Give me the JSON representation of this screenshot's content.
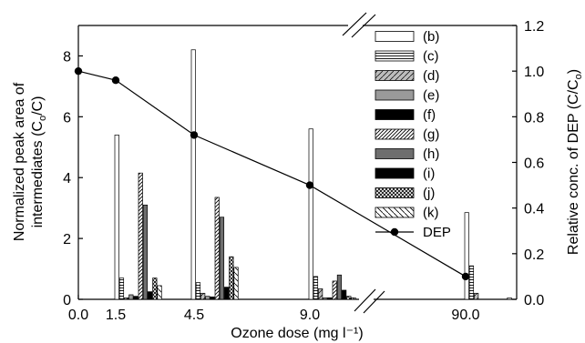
{
  "chart_data": {
    "type": "bar",
    "xlabel": "Ozone dose (mg l⁻¹)",
    "ylabel_left_line1": "Normalized peak area of",
    "ylabel_left_line2": "intermediates (C",
    "ylabel_left_sub": "o",
    "ylabel_left_tail": "/C)",
    "ylabel_right_main": "Relative conc. of DEP (C/C",
    "ylabel_right_sub": "o",
    "ylabel_right_tail": ")",
    "left_ylim": [
      0,
      9
    ],
    "left_yticks": [
      "0",
      "2",
      "4",
      "6",
      "8"
    ],
    "right_ylim": [
      0,
      1.2
    ],
    "right_yticks": [
      "0.0",
      "0.2",
      "0.4",
      "0.6",
      "0.8",
      "1.0",
      "1.2"
    ],
    "xticks": [
      "0.0",
      "1.5",
      "4.5",
      "9.0",
      "90.0"
    ],
    "categories": [
      "1.5",
      "4.5",
      "9.0",
      "90.0"
    ],
    "series": [
      {
        "name": "(b)",
        "pattern": "empty",
        "values": [
          5.4,
          8.2,
          5.6,
          2.85
        ]
      },
      {
        "name": "(c)",
        "pattern": "hlines",
        "values": [
          0.7,
          0.55,
          0.75,
          1.1
        ]
      },
      {
        "name": "(d)",
        "pattern": "diag-light",
        "values": [
          0.05,
          0.2,
          0.35,
          0.2
        ]
      },
      {
        "name": "(e)",
        "pattern": "gray",
        "values": [
          0.15,
          0.1,
          0.05,
          0.0
        ]
      },
      {
        "name": "(f)",
        "pattern": "black",
        "values": [
          0.1,
          0.08,
          0.05,
          0.0
        ]
      },
      {
        "name": "(g)",
        "pattern": "diag-dense",
        "values": [
          4.15,
          3.35,
          0.6,
          0.0
        ]
      },
      {
        "name": "(h)",
        "pattern": "darkgray",
        "values": [
          3.1,
          2.7,
          0.8,
          0.0
        ]
      },
      {
        "name": "(i)",
        "pattern": "black",
        "values": [
          0.25,
          0.4,
          0.3,
          0.0
        ]
      },
      {
        "name": "(j)",
        "pattern": "cross",
        "values": [
          0.7,
          1.4,
          0.1,
          0.0
        ]
      },
      {
        "name": "(k)",
        "pattern": "back-diag",
        "values": [
          0.45,
          1.05,
          0.05,
          0.05
        ]
      }
    ],
    "dep_series": {
      "name": "DEP",
      "x": [
        "0.0",
        "1.5",
        "4.5",
        "9.0",
        "90.0"
      ],
      "values": [
        1.0,
        0.96,
        0.72,
        0.5,
        0.1
      ]
    },
    "axis_break": "between 9.0 and 90.0",
    "legend_position": "top-right"
  }
}
